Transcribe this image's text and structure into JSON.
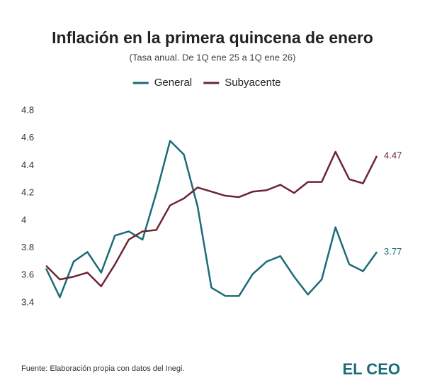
{
  "chart_data": {
    "type": "line",
    "title": "Inflación en la primera quincena de enero",
    "subtitle": "(Tasa anual. De 1Q ene 25 a 1Q ene 26)",
    "series": [
      {
        "name": "General",
        "color": "#1b6b78",
        "values": [
          3.65,
          3.44,
          3.7,
          3.77,
          3.62,
          3.89,
          3.92,
          3.86,
          4.2,
          4.58,
          4.48,
          4.1,
          3.51,
          3.45,
          3.45,
          3.61,
          3.7,
          3.74,
          3.59,
          3.46,
          3.57,
          3.95,
          3.68,
          3.63,
          3.77
        ]
      },
      {
        "name": "Subyacente",
        "color": "#6e2434",
        "values": [
          3.67,
          3.57,
          3.59,
          3.62,
          3.52,
          3.68,
          3.86,
          3.92,
          3.93,
          4.11,
          4.16,
          4.24,
          4.21,
          4.18,
          4.17,
          4.21,
          4.22,
          4.26,
          4.2,
          4.28,
          4.28,
          4.5,
          4.3,
          4.27,
          4.47
        ]
      }
    ],
    "ylim": [
      3.4,
      4.8
    ],
    "yticks": [
      3.4,
      3.6,
      3.8,
      4,
      4.2,
      4.4,
      4.6,
      4.8
    ],
    "grid": false,
    "legend": "top",
    "source": "Fuente: Elaboración propia con datos del Inegi.",
    "brand": "EL CEO"
  }
}
